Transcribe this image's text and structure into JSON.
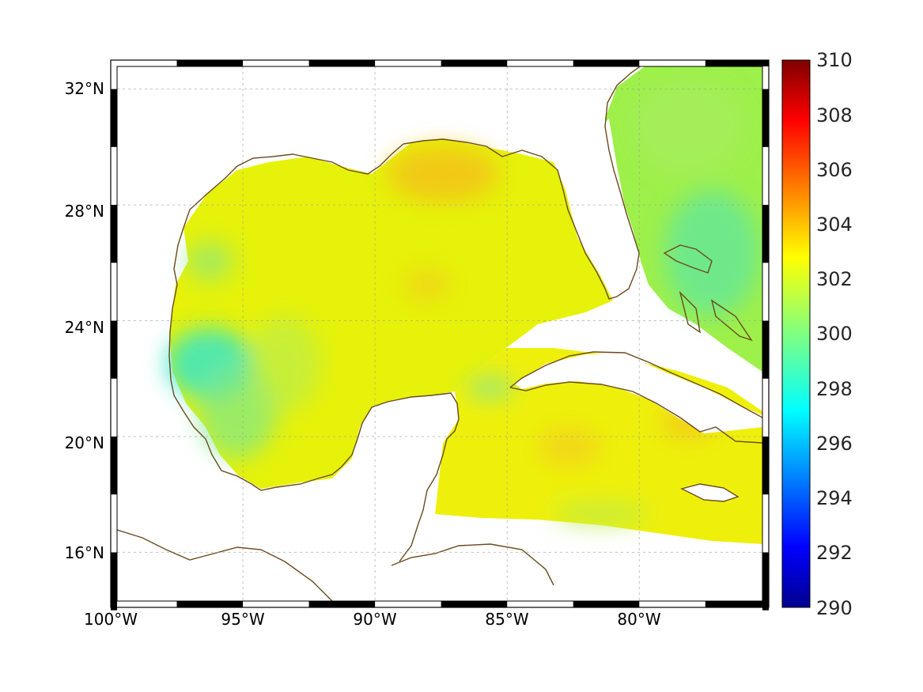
{
  "map": {
    "lon_labels": [
      "100°W",
      "95°W",
      "90°W",
      "85°W",
      "80°W"
    ],
    "lat_labels": [
      "32°N",
      "28°N",
      "24°N",
      "20°N",
      "16°N"
    ],
    "lon_values": [
      -100,
      -95,
      -90,
      -85,
      -80
    ],
    "lat_values": [
      32,
      28,
      24,
      20,
      16
    ],
    "lon_range": [
      -100,
      -75.1
    ],
    "lat_range": [
      14.1,
      33
    ],
    "grid": true,
    "coastline_color": "#6b4a1e",
    "colormap": "jet"
  },
  "colorbar": {
    "labels": [
      "310",
      "308",
      "306",
      "304",
      "302",
      "300",
      "298",
      "296",
      "294",
      "292",
      "290"
    ],
    "min": 290,
    "max": 310
  }
}
